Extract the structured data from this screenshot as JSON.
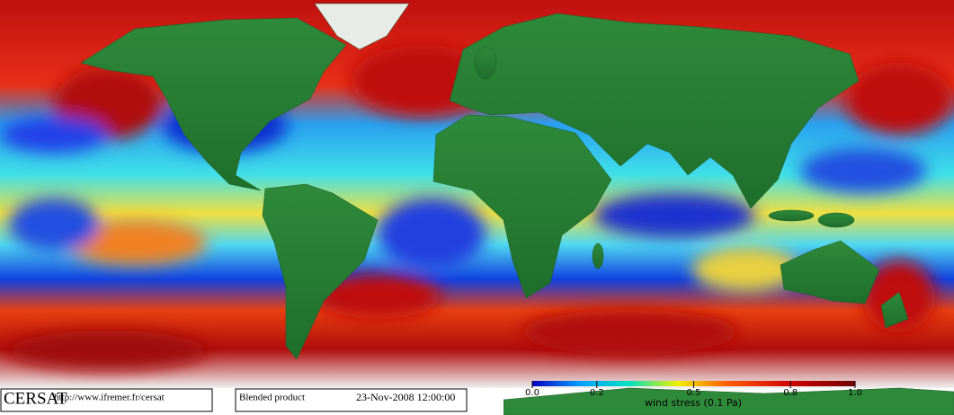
{
  "footer": {
    "logo": "CERSAT",
    "url": "http://www.ifremer.fr/cersat",
    "product": "Blended product",
    "date": "23-Nov-2008 12:00:00"
  },
  "colorbar": {
    "label": "wind stress (0.1 Pa)",
    "lim": [
      0,
      1
    ],
    "ticks": [
      {
        "value": 0,
        "label": "0.0"
      },
      0.2,
      0.5,
      0.8,
      {
        "value": 1,
        "label": "1.0"
      }
    ]
  }
}
